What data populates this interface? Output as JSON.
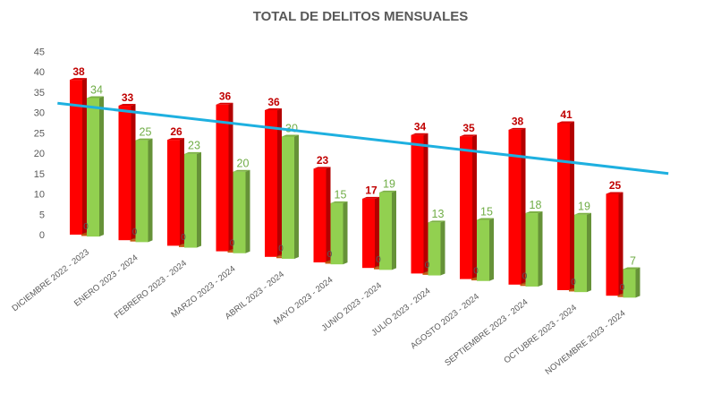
{
  "chart_data": {
    "type": "bar",
    "title": "TOTAL DE DELITOS MENSUALES",
    "xlabel": "",
    "ylabel": "",
    "ylim": [
      0,
      45
    ],
    "y_ticks": [
      "0",
      "5",
      "10",
      "15",
      "20",
      "25",
      "30",
      "35",
      "40",
      "45"
    ],
    "categories": [
      "DICIEMBRE 2022 - 2023",
      "ENERO 2023 - 2024",
      "FEBRERO 2023 - 2024",
      "MARZO 2023 - 2024",
      "ABRIL 2023 - 2024",
      "MAYO 2023 - 2024",
      "JUNIO  2023 - 2024",
      "JULIO 2023 - 2024",
      "AGOSTO 2023 - 2024",
      "SEPTIEMBRE 2023 - 2024",
      "OCTUBRE 2023 - 2024",
      "NOVIEMBRE 2023 - 2024"
    ],
    "series": [
      {
        "values": [
          38,
          33,
          26,
          36,
          36,
          23,
          17,
          34,
          35,
          38,
          41,
          25
        ],
        "color": "#ff0000",
        "label_color": "#c00000"
      },
      {
        "values": [
          0,
          0,
          0,
          0,
          0,
          0,
          0,
          0,
          0,
          0,
          0,
          0
        ],
        "color": "#c55a11",
        "label_color": "#595959"
      },
      {
        "values": [
          34,
          25,
          23,
          20,
          30,
          15,
          19,
          13,
          15,
          18,
          19,
          7
        ],
        "color": "#92d050",
        "label_color": "#70ad47"
      }
    ],
    "trendline": {
      "type": "linear",
      "series_index": 0,
      "color": "#1eb0e0"
    },
    "grid": false,
    "legend": "none",
    "style": "3d-perspective"
  }
}
